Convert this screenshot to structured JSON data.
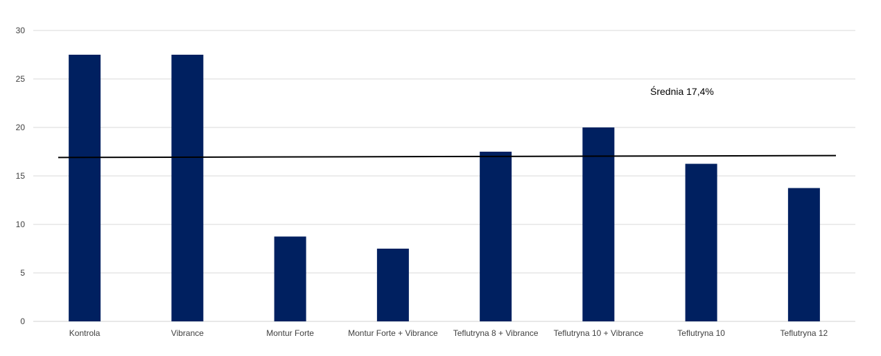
{
  "chart_data": {
    "type": "bar",
    "categories": [
      "Kontrola",
      "Vibrance",
      "Montur Forte",
      "Montur Forte + Vibrance",
      "Teflutryna 8 + Vibrance",
      "Teflutryna 10 + Vibrance",
      "Teflutryna 10",
      "Teflutryna 12"
    ],
    "values": [
      27.5,
      27.5,
      8.75,
      7.5,
      17.5,
      20,
      16.25,
      13.75
    ],
    "ylim": [
      0,
      30
    ],
    "yticks": [
      0,
      5,
      10,
      15,
      20,
      25,
      30
    ],
    "grid": true,
    "bar_color": "#002060",
    "reference_line": {
      "label": "Średnia 17,4%",
      "value_start": 16.9,
      "value_end": 17.1,
      "color": "#000000"
    }
  }
}
